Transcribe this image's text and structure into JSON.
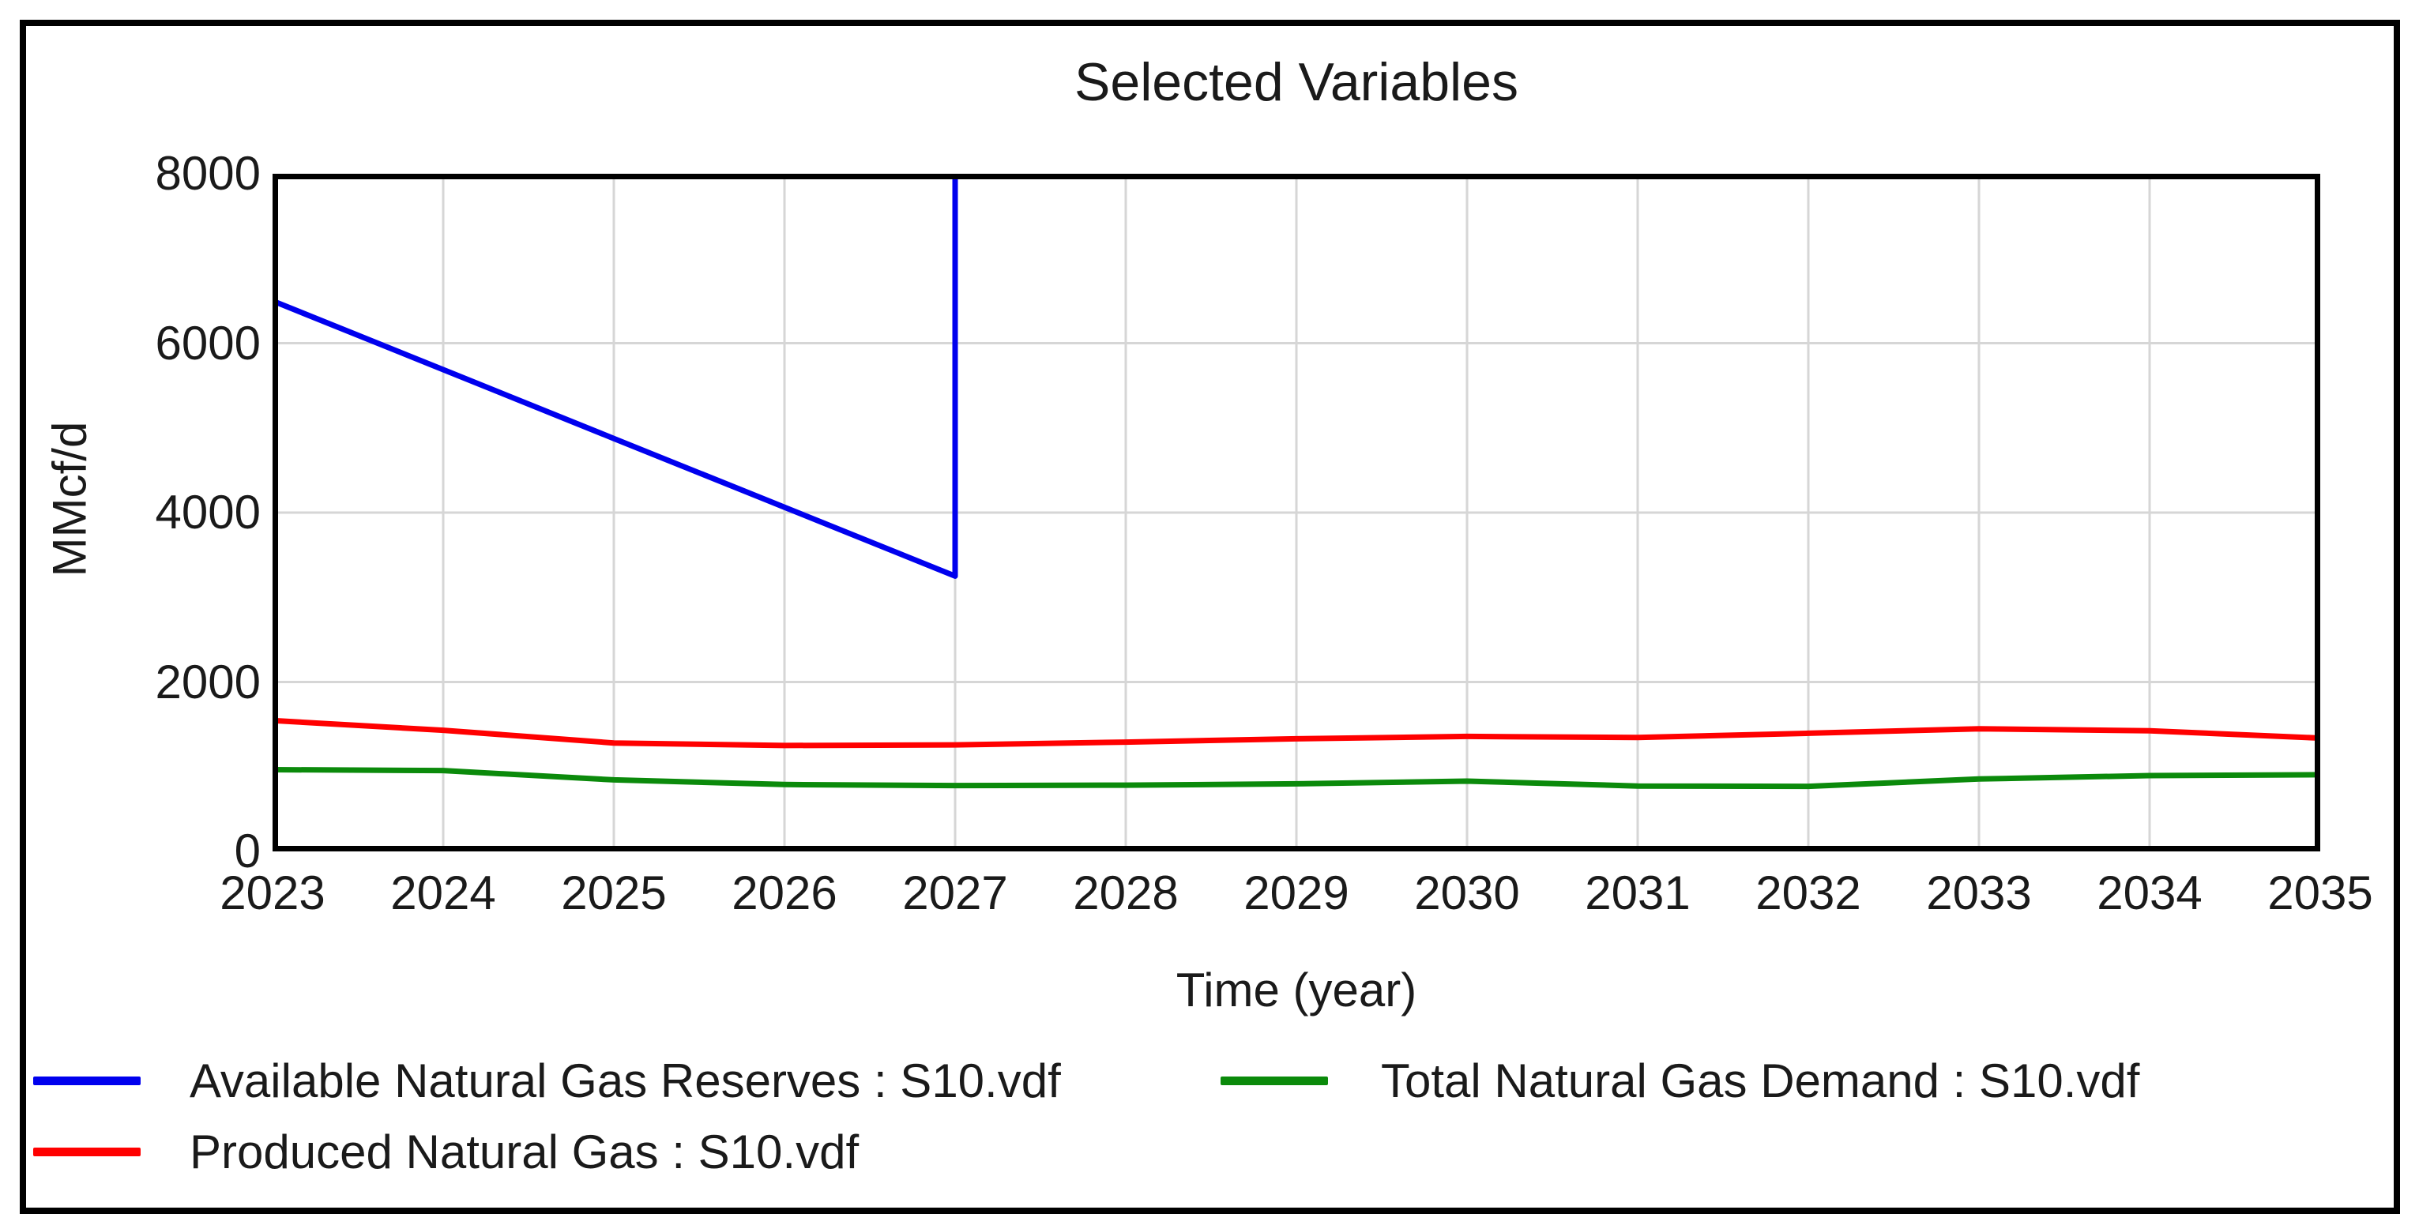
{
  "chart_data": {
    "type": "line",
    "title": "Selected Variables",
    "xlabel": "Time (year)",
    "ylabel": "MMcf/d",
    "xlim": [
      2023,
      2035
    ],
    "ylim": [
      0,
      8000
    ],
    "x_ticks": [
      2023,
      2024,
      2025,
      2026,
      2027,
      2028,
      2029,
      2030,
      2031,
      2032,
      2033,
      2034,
      2035
    ],
    "y_ticks": [
      0,
      2000,
      4000,
      6000,
      8000
    ],
    "grid": true,
    "grid_color": "#d6d6d6",
    "legend_position": "bottom, two columns",
    "legend_columns": [
      [
        0,
        1
      ],
      [
        2
      ]
    ],
    "series": [
      {
        "id": "available-natural-gas-reserves",
        "name": "Available Natural Gas Reserves : S10.vdf",
        "color": "#0000ee",
        "points": [
          [
            2023,
            6500
          ],
          [
            2024,
            5688
          ],
          [
            2025,
            4875
          ],
          [
            2026,
            4063
          ],
          [
            2027,
            3250
          ],
          [
            2027,
            8000
          ]
        ],
        "note": "declines linearly 2023-2027, then vertical jump at 2027 to above 8000 (off-scale, clipped at plot top; not visible 2027-2035)"
      },
      {
        "id": "produced-natural-gas",
        "name": "Produced Natural Gas : S10.vdf",
        "color": "#ff0000",
        "points": [
          [
            2023,
            1545
          ],
          [
            2024,
            1430
          ],
          [
            2025,
            1280
          ],
          [
            2026,
            1250
          ],
          [
            2027,
            1258
          ],
          [
            2028,
            1290
          ],
          [
            2029,
            1330
          ],
          [
            2030,
            1358
          ],
          [
            2031,
            1345
          ],
          [
            2032,
            1395
          ],
          [
            2033,
            1448
          ],
          [
            2034,
            1425
          ],
          [
            2035,
            1338
          ]
        ]
      },
      {
        "id": "total-natural-gas-demand",
        "name": "Total Natural Gas Demand : S10.vdf",
        "color": "#0b8a0b",
        "points": [
          [
            2023,
            965
          ],
          [
            2024,
            955
          ],
          [
            2025,
            845
          ],
          [
            2026,
            790
          ],
          [
            2027,
            778
          ],
          [
            2028,
            782
          ],
          [
            2029,
            798
          ],
          [
            2030,
            830
          ],
          [
            2031,
            772
          ],
          [
            2032,
            768
          ],
          [
            2033,
            855
          ],
          [
            2034,
            895
          ],
          [
            2035,
            905
          ]
        ]
      }
    ]
  }
}
